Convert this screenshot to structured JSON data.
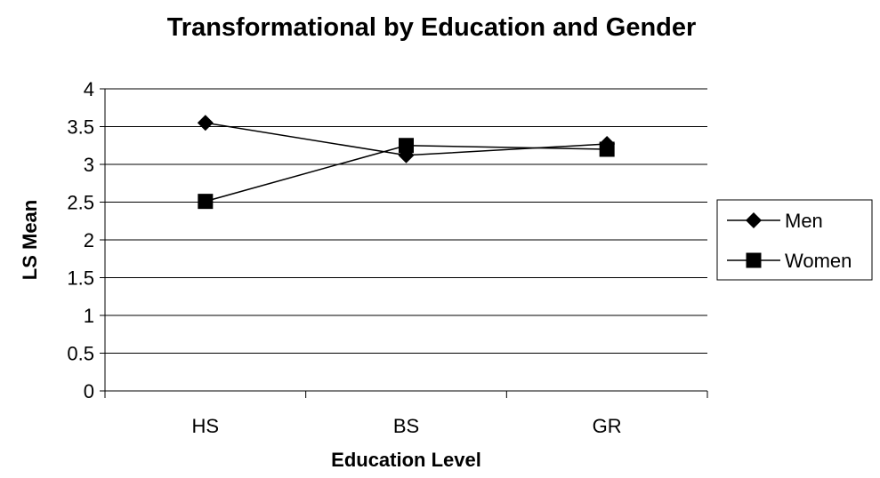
{
  "chart_data": {
    "type": "line",
    "title": "Transformational by Education and Gender",
    "xlabel": "Education Level",
    "ylabel": "LS Mean",
    "categories": [
      "HS",
      "BS",
      "GR"
    ],
    "ylim": [
      0,
      4
    ],
    "yticks": [
      "0",
      "0.5",
      "1",
      "1.5",
      "2",
      "2.5",
      "3",
      "3.5",
      "4"
    ],
    "grid": true,
    "legend_position": "right",
    "series": [
      {
        "name": "Men",
        "marker": "diamond",
        "values": [
          3.55,
          3.12,
          3.27
        ]
      },
      {
        "name": "Women",
        "marker": "square",
        "values": [
          2.51,
          3.25,
          3.2
        ]
      }
    ]
  }
}
